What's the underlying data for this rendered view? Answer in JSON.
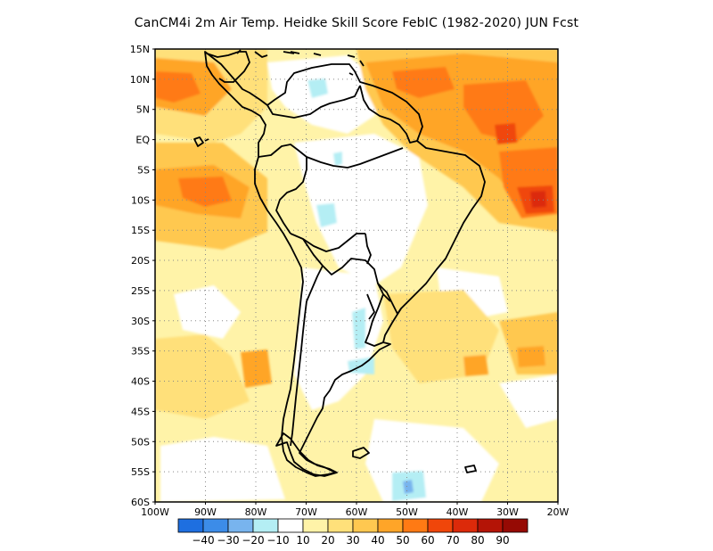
{
  "title": "CanCM4i  2m Air Temp. Heidke Skill Score FebIC (1982-2020) JUN Fcst",
  "map": {
    "lat_labels": [
      "15N",
      "10N",
      "5N",
      "EQ",
      "5S",
      "10S",
      "15S",
      "20S",
      "25S",
      "30S",
      "35S",
      "40S",
      "45S",
      "50S",
      "55S",
      "60S"
    ],
    "lon_labels": [
      "100W",
      "90W",
      "80W",
      "70W",
      "60W",
      "50W",
      "40W",
      "30W",
      "20W"
    ],
    "lon_range": [
      -100,
      -20
    ],
    "lat_range": [
      -60,
      15
    ],
    "grid": "dotted"
  },
  "colorbar": {
    "colors": [
      "#1e6fe0",
      "#3c8ce8",
      "#78b4ee",
      "#b4eef4",
      "#ffffff",
      "#fff3a8",
      "#ffe07a",
      "#ffc850",
      "#ffa528",
      "#ff7a14",
      "#f0460a",
      "#dc2a0a",
      "#b41406",
      "#960a04"
    ],
    "labels": [
      "-40",
      "-30",
      "-20",
      "-10",
      "10",
      "20",
      "30",
      "40",
      "50",
      "60",
      "70",
      "80",
      "90"
    ]
  },
  "chart_data": {
    "type": "heatmap",
    "title": "CanCM4i  2m Air Temp. Heidke Skill Score FebIC (1982-2020) JUN Fcst",
    "xlabel": "",
    "ylabel": "",
    "xlim": [
      -100,
      -20
    ],
    "ylim": [
      -60,
      15
    ],
    "levels": [
      -40,
      -30,
      -20,
      -10,
      10,
      20,
      30,
      40,
      50,
      60,
      70,
      80,
      90
    ]
  }
}
